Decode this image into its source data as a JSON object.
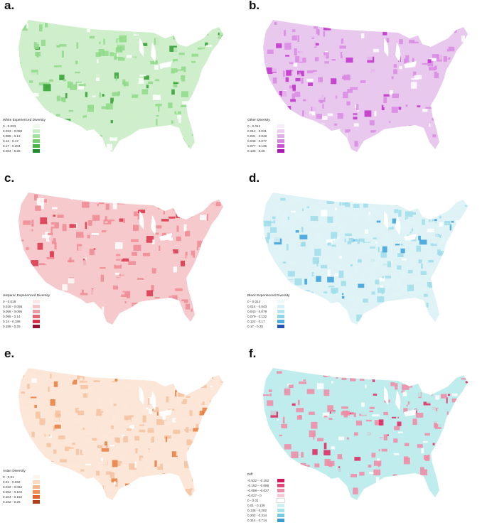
{
  "panels": [
    {
      "id": "a",
      "letter": "a.",
      "legend_title": "White Experienced Diversity",
      "colors": {
        "base": "#cfeecb",
        "mid": "#8fd98a",
        "dark": "#2f9f31"
      },
      "legend": [
        {
          "label": "0 - 0.033",
          "color": "#eef9ec"
        },
        {
          "label": "0.033 - 0.088",
          "color": "#c9edc4"
        },
        {
          "label": "0.088 - 0.13",
          "color": "#a3df9c"
        },
        {
          "label": "0.13 - 0.17",
          "color": "#76cc6e"
        },
        {
          "label": "0.17 - 0.204",
          "color": "#48b446"
        },
        {
          "label": "0.204 - 0.25",
          "color": "#1f8a2b"
        }
      ]
    },
    {
      "id": "b",
      "letter": "b.",
      "legend_title": "Other Diversity",
      "colors": {
        "base": "#e9c8ee",
        "mid": "#d98ae3",
        "dark": "#c02fc9"
      },
      "legend": [
        {
          "label": "0 - 0.012",
          "color": "#f7ecf8"
        },
        {
          "label": "0.012 - 0.031",
          "color": "#ecd0f0"
        },
        {
          "label": "0.031 - 0.048",
          "color": "#e0aee7"
        },
        {
          "label": "0.048 - 0.077",
          "color": "#d585de"
        },
        {
          "label": "0.077 - 0.135",
          "color": "#c852d2"
        },
        {
          "label": "0.135 - 0.25",
          "color": "#a817b0"
        }
      ]
    },
    {
      "id": "c",
      "letter": "c.",
      "legend_title": "Hispanic Experienced Diversity",
      "colors": {
        "base": "#f6c9cc",
        "mid": "#ee8a93",
        "dark": "#d9344a"
      },
      "legend": [
        {
          "label": "0 - 0.018",
          "color": "#fbe7e8"
        },
        {
          "label": "0.018 - 0.058",
          "color": "#f5c5c9"
        },
        {
          "label": "0.058 - 0.095",
          "color": "#ee9aa2"
        },
        {
          "label": "0.095 - 0.14",
          "color": "#e56673"
        },
        {
          "label": "0.14 - 0.188",
          "color": "#d63249"
        },
        {
          "label": "0.188 - 0.25",
          "color": "#8e1030"
        }
      ]
    },
    {
      "id": "d",
      "letter": "d.",
      "legend_title": "Black Experienced Diversity",
      "colors": {
        "base": "#dff3f6",
        "mid": "#9fdcea",
        "dark": "#3a9fdc"
      },
      "legend": [
        {
          "label": "0 - 0.014",
          "color": "#eef9fb"
        },
        {
          "label": "0.014 - 0.043",
          "color": "#d6f1f5"
        },
        {
          "label": "0.043 - 0.079",
          "color": "#b5e6ef"
        },
        {
          "label": "0.079 - 0.122",
          "color": "#8ad5e8"
        },
        {
          "label": "0.122 - 0.17",
          "color": "#4eaee0"
        },
        {
          "label": "0.17 - 0.25",
          "color": "#2553b8"
        }
      ]
    },
    {
      "id": "e",
      "letter": "e.",
      "legend_title": "Asian Diversity",
      "colors": {
        "base": "#fbe6d8",
        "mid": "#f5c2a0",
        "dark": "#e67b3d"
      },
      "legend": [
        {
          "label": "0 - 0.01",
          "color": "#fdf4ee"
        },
        {
          "label": "0.01 - 0.032",
          "color": "#fad8c2"
        },
        {
          "label": "0.032 - 0.062",
          "color": "#f6b68e"
        },
        {
          "label": "0.062 - 0.104",
          "color": "#ef8f5a"
        },
        {
          "label": "0.104 - 0.162",
          "color": "#e2642d"
        },
        {
          "label": "0.162 - 0.25",
          "color": "#b0401a"
        }
      ]
    },
    {
      "id": "f",
      "letter": "f.",
      "legend_title": "Diff",
      "colors": {
        "base": "#bfecec",
        "mid": "#f08aa5",
        "dark": "#e0235f"
      },
      "legend": [
        {
          "label": "-0.532 - -0.182",
          "color": "#d9155a"
        },
        {
          "label": "-0.182 - -0.088",
          "color": "#e4487a"
        },
        {
          "label": "-0.088 - -0.027",
          "color": "#ee8ba6"
        },
        {
          "label": "-0.027 - 0",
          "color": "#f7c9d4"
        },
        {
          "label": "0 - 0.01",
          "color": "#ffffff"
        },
        {
          "label": "0.01 - 0.136",
          "color": "#cdeff0"
        },
        {
          "label": "0.136 - 0.202",
          "color": "#a6e3e8"
        },
        {
          "label": "0.202 - 0.314",
          "color": "#74cbe0"
        },
        {
          "label": "0.314 - 0.714",
          "color": "#3a9fd0"
        }
      ]
    }
  ]
}
